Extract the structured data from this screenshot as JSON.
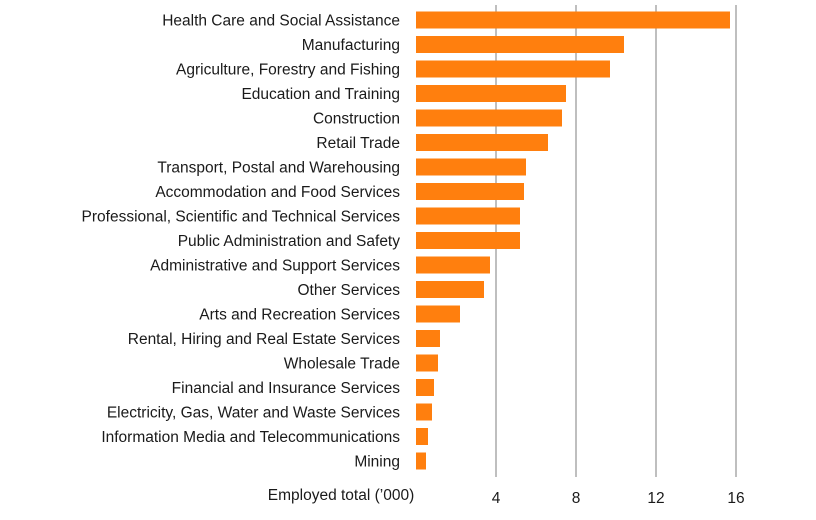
{
  "chart_data": {
    "type": "bar",
    "orientation": "horizontal",
    "categories": [
      "Health Care and Social Assistance",
      "Manufacturing",
      "Agriculture, Forestry and Fishing",
      "Education and Training",
      "Construction",
      "Retail Trade",
      "Transport, Postal and Warehousing",
      "Accommodation and Food Services",
      "Professional, Scientific and Technical Services",
      "Public Administration and Safety",
      "Administrative and Support Services",
      "Other Services",
      "Arts and Recreation Services",
      "Rental, Hiring and Real Estate Services",
      "Wholesale Trade",
      "Financial and Insurance Services",
      "Electricity, Gas, Water and Waste Services",
      "Information Media and Telecommunications",
      "Mining"
    ],
    "values": [
      15.7,
      10.4,
      9.7,
      7.5,
      7.3,
      6.6,
      5.5,
      5.4,
      5.2,
      5.2,
      3.7,
      3.4,
      2.2,
      1.2,
      1.1,
      0.9,
      0.8,
      0.6,
      0.5
    ],
    "xlabel": "Employed total (’000)",
    "xticks": [
      4,
      8,
      12,
      16
    ],
    "xlim": [
      0,
      16
    ],
    "grid": true,
    "colors": {
      "bar": "#FF7F0E",
      "grid": "#7f7f7f"
    }
  }
}
